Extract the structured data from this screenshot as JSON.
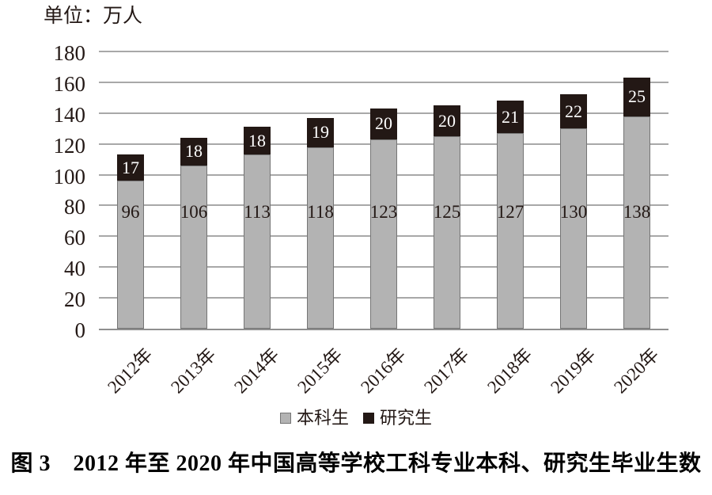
{
  "chart_data": {
    "type": "bar",
    "stacked": true,
    "unit_label": "单位：万人",
    "categories": [
      "2012年",
      "2013年",
      "2014年",
      "2015年",
      "2016年",
      "2017年",
      "2018年",
      "2019年",
      "2020年"
    ],
    "series": [
      {
        "name": "本科生",
        "color": "#b3b3b3",
        "border_color": "#757575",
        "label_color": "#231815",
        "values": [
          96,
          106,
          113,
          118,
          123,
          125,
          127,
          130,
          138
        ]
      },
      {
        "name": "研究生",
        "color": "#231815",
        "border_color": "#231815",
        "label_color": "#ffffff",
        "values": [
          17,
          18,
          18,
          19,
          20,
          20,
          21,
          22,
          25
        ]
      }
    ],
    "ylim": [
      0,
      180
    ],
    "ytick_step": 20,
    "yticks": [
      0,
      20,
      40,
      60,
      80,
      100,
      120,
      140,
      160,
      180
    ],
    "grid": true,
    "legend_position": "bottom",
    "caption": "图 3　2012 年至 2020 年中国高等学校工科专业本科、研究生毕业生数"
  },
  "colors": {
    "gridline": "#a8a8a8",
    "axis_line": "#8f8f8f",
    "text": "#231815"
  }
}
